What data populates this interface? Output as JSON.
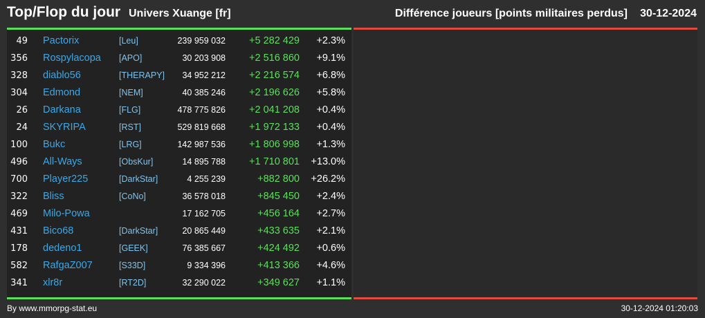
{
  "header": {
    "title": "Top/Flop du jour",
    "universe": "Univers Xuange [fr]",
    "metric": "Différence joueurs [points militaires perdus]",
    "date": "30-12-2024"
  },
  "colors": {
    "background": "#2f2f2f",
    "panel_left": "#222222",
    "panel_right": "#2a2a2a",
    "top_line": "#5ae05a",
    "flop_line": "#e04a40",
    "player_name": "#3aa8e8",
    "alliance": "#7fc4ee",
    "delta": "#5ae05a"
  },
  "top": [
    {
      "rank": "49",
      "name": "Pactorix",
      "alliance": "[Leu]",
      "points": "239 959 032",
      "delta": "+5 282 429",
      "pct": "+2.3%"
    },
    {
      "rank": "356",
      "name": "Rospylacopa",
      "alliance": "[APO]",
      "points": "30 203 908",
      "delta": "+2 516 860",
      "pct": "+9.1%"
    },
    {
      "rank": "328",
      "name": "diablo56",
      "alliance": "[THERAPY]",
      "points": "34 952 212",
      "delta": "+2 216 574",
      "pct": "+6.8%"
    },
    {
      "rank": "304",
      "name": "Edmond",
      "alliance": "[NEM]",
      "points": "40 385 246",
      "delta": "+2 196 626",
      "pct": "+5.8%"
    },
    {
      "rank": "26",
      "name": "Darkana",
      "alliance": "[FLG]",
      "points": "478 775 826",
      "delta": "+2 041 208",
      "pct": "+0.4%"
    },
    {
      "rank": "24",
      "name": "SKYRIPA",
      "alliance": "[RST]",
      "points": "529 819 668",
      "delta": "+1 972 133",
      "pct": "+0.4%"
    },
    {
      "rank": "100",
      "name": "Bukc",
      "alliance": "[LRG]",
      "points": "142 987 536",
      "delta": "+1 806 998",
      "pct": "+1.3%"
    },
    {
      "rank": "496",
      "name": "All-Ways",
      "alliance": "[ObsKur]",
      "points": "14 895 788",
      "delta": "+1 710 801",
      "pct": "+13.0%"
    },
    {
      "rank": "700",
      "name": "Player225",
      "alliance": "[DarkStar]",
      "points": "4 255 239",
      "delta": "+882 800",
      "pct": "+26.2%"
    },
    {
      "rank": "322",
      "name": "Bliss",
      "alliance": "[CoNo]",
      "points": "36 578 018",
      "delta": "+845 450",
      "pct": "+2.4%"
    },
    {
      "rank": "469",
      "name": "Milo-Powa",
      "alliance": "",
      "points": "17 162 705",
      "delta": "+456 164",
      "pct": "+2.7%"
    },
    {
      "rank": "431",
      "name": "Bico68",
      "alliance": "[DarkStar]",
      "points": "20 865 449",
      "delta": "+433 635",
      "pct": "+2.1%"
    },
    {
      "rank": "178",
      "name": "dedeno1",
      "alliance": "[GEEK]",
      "points": "76 385 667",
      "delta": "+424 492",
      "pct": "+0.6%"
    },
    {
      "rank": "582",
      "name": "RafgaZ007",
      "alliance": "[S33D]",
      "points": "9 334 396",
      "delta": "+413 366",
      "pct": "+4.6%"
    },
    {
      "rank": "341",
      "name": "xlr8r",
      "alliance": "[RT2D]",
      "points": "32 290 022",
      "delta": "+349 627",
      "pct": "+1.1%"
    }
  ],
  "footer": {
    "credit": "By www.mmorpg-stat.eu",
    "timestamp": "30-12-2024 01:20:03"
  }
}
